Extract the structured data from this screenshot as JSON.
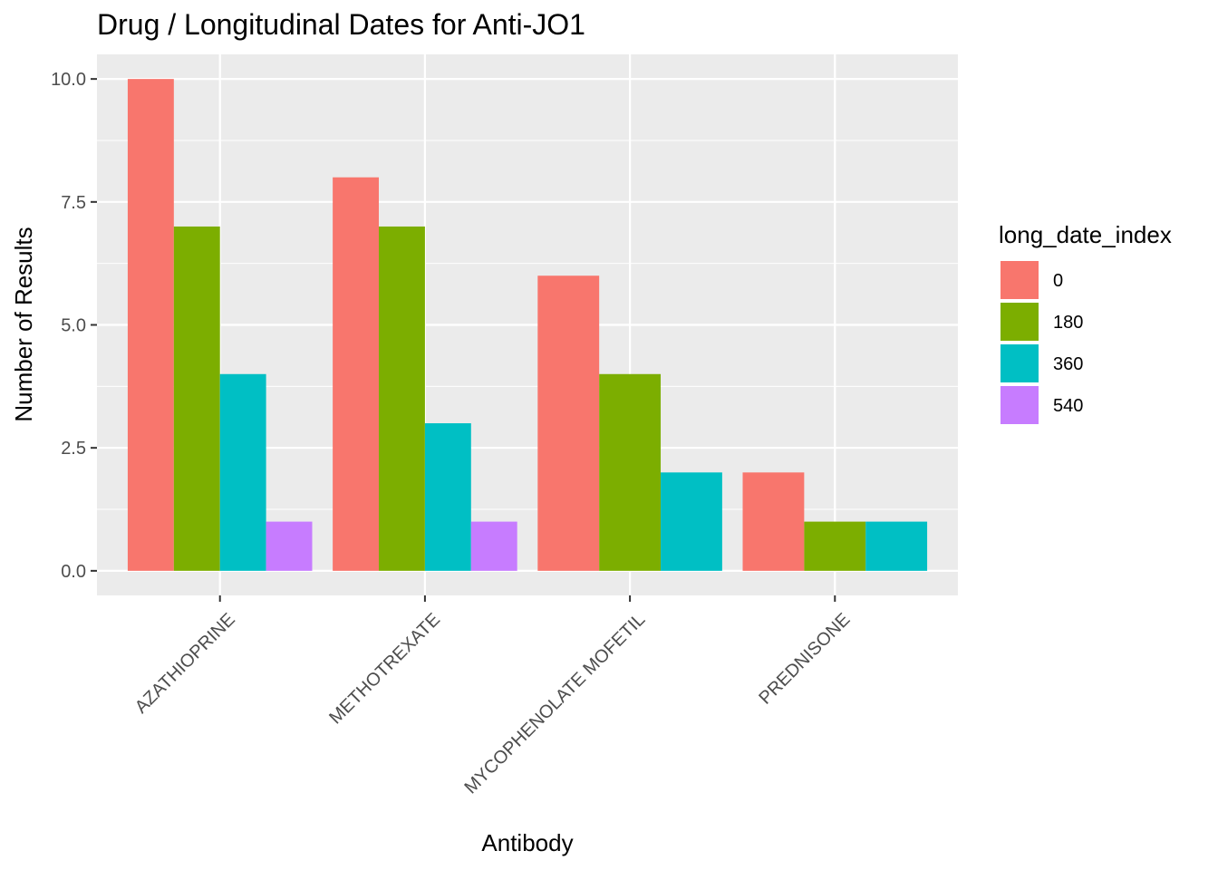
{
  "chart_data": {
    "type": "bar",
    "title": "Drug / Longitudinal Dates for Anti-JO1",
    "xlabel": "Antibody",
    "ylabel": "Number of Results",
    "categories": [
      "AZATHIOPRINE",
      "METHOTREXATE",
      "MYCOPHENOLATE MOFETIL",
      "PREDNISONE"
    ],
    "series": [
      {
        "name": "0",
        "color": "#F8766D",
        "values": [
          10,
          8,
          6,
          2
        ]
      },
      {
        "name": "180",
        "color": "#7CAE00",
        "values": [
          7,
          7,
          4,
          1
        ]
      },
      {
        "name": "360",
        "color": "#00BFC4",
        "values": [
          4,
          3,
          2,
          1
        ]
      },
      {
        "name": "540",
        "color": "#C77CFF",
        "values": [
          1,
          1,
          null,
          null
        ]
      }
    ],
    "ylim": [
      -0.5,
      10.5
    ],
    "yticks": [
      0,
      2.5,
      5,
      7.5,
      10
    ],
    "ytick_labels": [
      "0.0",
      "2.5",
      "5.0",
      "7.5",
      "10.0"
    ],
    "legend": {
      "title": "long_date_index",
      "position": "right"
    },
    "grid": true,
    "panel_background": "#EBEBEB"
  }
}
